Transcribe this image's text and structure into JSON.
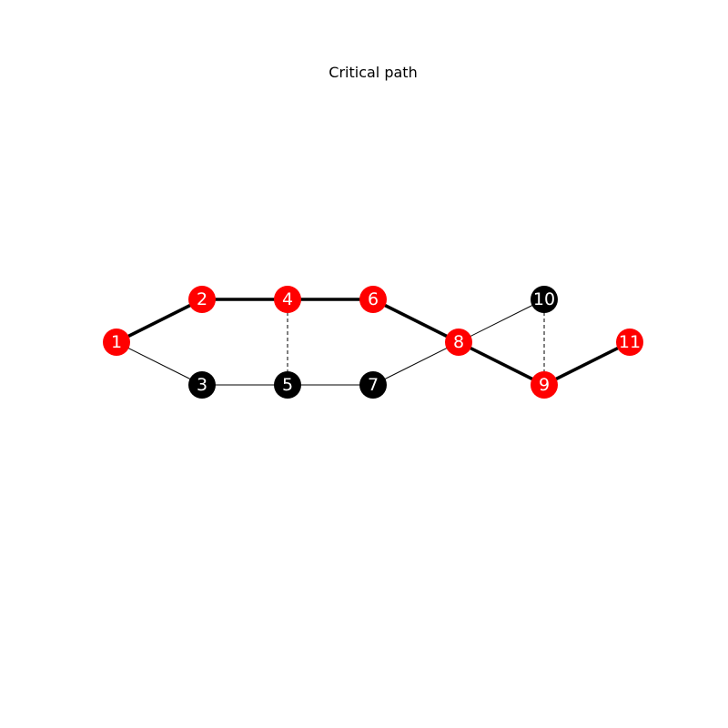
{
  "title": "Critical path",
  "graph": {
    "critical_color": "#ff0000",
    "normal_color": "#000000",
    "nodes": [
      {
        "id": "1",
        "critical": true
      },
      {
        "id": "2",
        "critical": true
      },
      {
        "id": "3",
        "critical": false
      },
      {
        "id": "4",
        "critical": true
      },
      {
        "id": "5",
        "critical": false
      },
      {
        "id": "6",
        "critical": true
      },
      {
        "id": "7",
        "critical": false
      },
      {
        "id": "8",
        "critical": true
      },
      {
        "id": "9",
        "critical": true
      },
      {
        "id": "10",
        "critical": false
      },
      {
        "id": "11",
        "critical": true
      }
    ],
    "edges": [
      {
        "from": "1",
        "to": "2",
        "style": "critical"
      },
      {
        "from": "2",
        "to": "4",
        "style": "critical"
      },
      {
        "from": "4",
        "to": "6",
        "style": "critical"
      },
      {
        "from": "6",
        "to": "8",
        "style": "critical"
      },
      {
        "from": "8",
        "to": "9",
        "style": "critical"
      },
      {
        "from": "9",
        "to": "11",
        "style": "critical"
      },
      {
        "from": "1",
        "to": "3",
        "style": "normal"
      },
      {
        "from": "3",
        "to": "5",
        "style": "normal"
      },
      {
        "from": "5",
        "to": "7",
        "style": "normal"
      },
      {
        "from": "7",
        "to": "8",
        "style": "normal"
      },
      {
        "from": "8",
        "to": "10",
        "style": "normal"
      },
      {
        "from": "4",
        "to": "5",
        "style": "dashed"
      },
      {
        "from": "10",
        "to": "9",
        "style": "dashed"
      }
    ]
  }
}
